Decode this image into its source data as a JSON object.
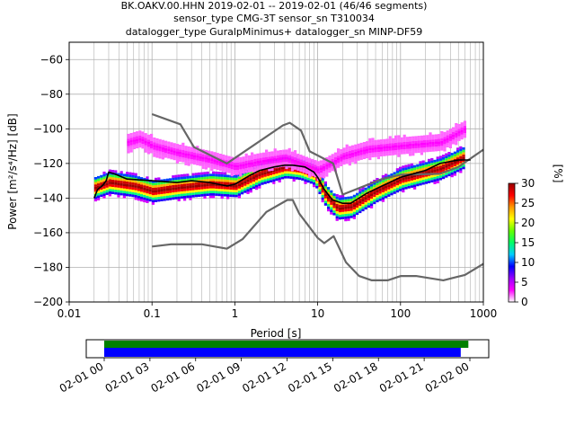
{
  "title_lines": [
    "BK.OAKV.00.HHN   2019-02-01 -- 2019-02-01  (46/46 segments)",
    "sensor_type CMG-3T sensor_sn T310034",
    "datalogger_type GuralpMinimus+ datalogger_sn MINP-DF59"
  ],
  "chart_data": {
    "type": "heatmap",
    "xlabel": "Period [s]",
    "ylabel": "Power [m²/s⁴/Hz] [dB]",
    "xscale": "log",
    "xlim": [
      0.01,
      1000
    ],
    "ylim": [
      -200,
      -50
    ],
    "x_ticks": [
      {
        "value": 0.01,
        "label": "0.01"
      },
      {
        "value": 0.1,
        "label": "0.1"
      },
      {
        "value": 1,
        "label": "1"
      },
      {
        "value": 10,
        "label": "10"
      },
      {
        "value": 100,
        "label": "100"
      },
      {
        "value": 1000,
        "label": "1000"
      }
    ],
    "y_ticks": [
      -60,
      -80,
      -100,
      -120,
      -140,
      -160,
      -180,
      -200
    ],
    "grid": true,
    "series": [
      {
        "role": "noise-model-high",
        "color": "#666666",
        "points": [
          [
            0.1,
            -91.5
          ],
          [
            0.22,
            -97.4
          ],
          [
            0.32,
            -110.5
          ],
          [
            0.8,
            -120
          ],
          [
            3.8,
            -98
          ],
          [
            4.6,
            -96.5
          ],
          [
            6.3,
            -101
          ],
          [
            8,
            -113
          ],
          [
            15.4,
            -120
          ],
          [
            20,
            -138
          ],
          [
            60,
            -129
          ],
          [
            100,
            -126.5
          ],
          [
            300,
            -126
          ],
          [
            500,
            -122
          ],
          [
            1000,
            -112
          ]
        ]
      },
      {
        "role": "noise-model-low",
        "color": "#666666",
        "points": [
          [
            0.1,
            -168
          ],
          [
            0.17,
            -166.7
          ],
          [
            0.4,
            -166.7
          ],
          [
            0.8,
            -169.2
          ],
          [
            1.24,
            -163.7
          ],
          [
            2.4,
            -148
          ],
          [
            4.3,
            -141.1
          ],
          [
            5,
            -141.1
          ],
          [
            6,
            -149
          ],
          [
            10,
            -163
          ],
          [
            12,
            -166
          ],
          [
            15.6,
            -162
          ],
          [
            21.9,
            -177
          ],
          [
            31.6,
            -185
          ],
          [
            45,
            -187.5
          ],
          [
            70,
            -187.5
          ],
          [
            101,
            -185
          ],
          [
            154,
            -185
          ],
          [
            328,
            -187.5
          ],
          [
            600,
            -184.4
          ],
          [
            1000,
            -178
          ]
        ]
      },
      {
        "role": "mode",
        "color": "#000000",
        "points": [
          [
            0.02,
            -140
          ],
          [
            0.022,
            -135
          ],
          [
            0.025,
            -133
          ],
          [
            0.028,
            -130
          ],
          [
            0.03,
            -125
          ],
          [
            0.035,
            -126
          ],
          [
            0.05,
            -129
          ],
          [
            0.1,
            -130
          ],
          [
            0.2,
            -131
          ],
          [
            0.3,
            -130
          ],
          [
            0.5,
            -131
          ],
          [
            0.8,
            -133
          ],
          [
            1,
            -132
          ],
          [
            1.5,
            -127
          ],
          [
            2,
            -124
          ],
          [
            3,
            -122
          ],
          [
            4,
            -121
          ],
          [
            5,
            -121
          ],
          [
            7,
            -122
          ],
          [
            9,
            -125
          ],
          [
            10,
            -128
          ],
          [
            12,
            -135
          ],
          [
            15,
            -141
          ],
          [
            20,
            -143
          ],
          [
            25,
            -143
          ],
          [
            40,
            -137
          ],
          [
            60,
            -133
          ],
          [
            100,
            -128
          ],
          [
            200,
            -124
          ],
          [
            300,
            -120
          ],
          [
            500,
            -118
          ],
          [
            700,
            -118
          ]
        ]
      }
    ],
    "pdf_clouds": [
      {
        "centre": [
          [
            0.02,
            -134
          ],
          [
            0.03,
            -131
          ],
          [
            0.06,
            -133
          ],
          [
            0.1,
            -136
          ],
          [
            0.2,
            -134
          ],
          [
            0.5,
            -132
          ],
          [
            1,
            -133
          ],
          [
            2,
            -126
          ],
          [
            4,
            -122
          ],
          [
            6,
            -123
          ],
          [
            9,
            -126
          ],
          [
            12,
            -138
          ],
          [
            17,
            -146
          ],
          [
            25,
            -145
          ],
          [
            50,
            -136
          ],
          [
            100,
            -129
          ],
          [
            300,
            -123
          ],
          [
            600,
            -116
          ]
        ],
        "spread": 8,
        "peak_percent": 30
      },
      {
        "centre": [
          [
            0.05,
            -108
          ],
          [
            0.07,
            -106
          ],
          [
            0.1,
            -110
          ],
          [
            0.2,
            -114
          ],
          [
            0.5,
            -118
          ],
          [
            1,
            -122
          ],
          [
            2,
            -119
          ],
          [
            4,
            -117
          ],
          [
            6,
            -120
          ],
          [
            10,
            -124
          ],
          [
            20,
            -116
          ],
          [
            40,
            -112
          ],
          [
            100,
            -110
          ],
          [
            300,
            -108
          ],
          [
            600,
            -100
          ]
        ],
        "spread": 6,
        "peak_percent": 3
      }
    ],
    "colorbar": {
      "label": "[%]",
      "min": 0,
      "max": 30,
      "ticks": [
        0,
        5,
        10,
        15,
        20,
        25,
        30
      ],
      "colors": [
        "#ffffff",
        "#ff00ff",
        "#9900ff",
        "#0000ff",
        "#00ccff",
        "#00ff66",
        "#66ff00",
        "#ffff00",
        "#ff9900",
        "#ff0000",
        "#990000"
      ]
    }
  },
  "timeline": {
    "x_ticks": [
      "02-01 00",
      "02-01 03",
      "02-01 06",
      "02-01 09",
      "02-01 12",
      "02-01 15",
      "02-01 18",
      "02-01 21",
      "02-02 00"
    ],
    "hours_span": 25.8,
    "bars": [
      {
        "color": "#008000",
        "start_h": 0.0,
        "end_h": 23.9
      },
      {
        "color": "#0000ff",
        "start_h": 0.0,
        "end_h": 23.4
      }
    ]
  }
}
